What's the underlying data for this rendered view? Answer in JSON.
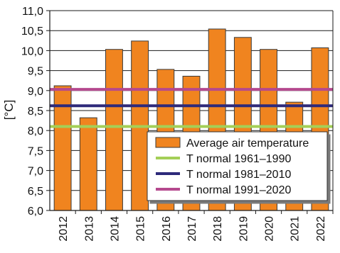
{
  "chart_data": {
    "type": "bar",
    "title": "",
    "xlabel": "",
    "ylabel": "[°C]",
    "ylim": [
      6.0,
      11.0
    ],
    "yticks": [
      "6,0",
      "6,5",
      "7,0",
      "7,5",
      "8,0",
      "8,5",
      "9,0",
      "9,5",
      "10,0",
      "10,5",
      "11,0"
    ],
    "grid": "horizontal",
    "categories": [
      "2012",
      "2013",
      "2014",
      "2015",
      "2016",
      "2017",
      "2018",
      "2019",
      "2020",
      "2021",
      "2022"
    ],
    "series": [
      {
        "name": "Average air temperature",
        "kind": "bar",
        "color": "#F0841F",
        "values": [
          9.12,
          8.32,
          10.03,
          10.24,
          9.53,
          9.36,
          10.54,
          10.33,
          10.03,
          8.71,
          10.07
        ]
      },
      {
        "name": "T normal 1961–1990",
        "kind": "hline",
        "color": "#A4CF57",
        "value": 8.1
      },
      {
        "name": "T normal 1981–2010",
        "kind": "hline",
        "color": "#2E2A7A",
        "value": 8.62
      },
      {
        "name": "T normal 1991–2020",
        "kind": "hline",
        "color": "#B5498E",
        "value": 9.03
      }
    ],
    "legend": {
      "placement": "bottom-right",
      "entries": [
        "Average air temperature",
        "T normal 1961–1990",
        "T normal 1981–2010",
        "T normal 1991–2020"
      ]
    }
  }
}
